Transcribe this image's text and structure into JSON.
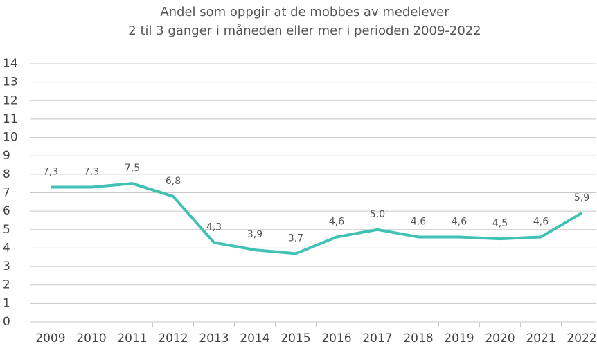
{
  "chart_data": {
    "type": "line",
    "title": [
      "Andel som oppgir at de mobbes av medelever",
      "2 til 3 ganger i måneden eller mer i perioden 2009-2022"
    ],
    "categories": [
      "2009",
      "2010",
      "2011",
      "2012",
      "2013",
      "2014",
      "2015",
      "2016",
      "2017",
      "2018",
      "2019",
      "2020",
      "2021",
      "2022"
    ],
    "series": [
      {
        "color": "#3fc1b5",
        "values": [
          7.3,
          7.3,
          7.5,
          6.8,
          4.3,
          3.9,
          3.7,
          4.6,
          5.0,
          4.6,
          4.6,
          4.5,
          4.6,
          5.9
        ],
        "value_labels": [
          "7,3",
          "7,3",
          "7,5",
          "6,8",
          "4,3",
          "3,9",
          "3,7",
          "4,6",
          "5,0",
          "4,6",
          "4,6",
          "4,5",
          "4,6",
          "5,9"
        ]
      }
    ],
    "ylim": [
      0,
      14
    ],
    "yticks": [
      0,
      1,
      2,
      3,
      4,
      5,
      6,
      7,
      8,
      9,
      10,
      11,
      12,
      13,
      14
    ],
    "grid": true
  }
}
